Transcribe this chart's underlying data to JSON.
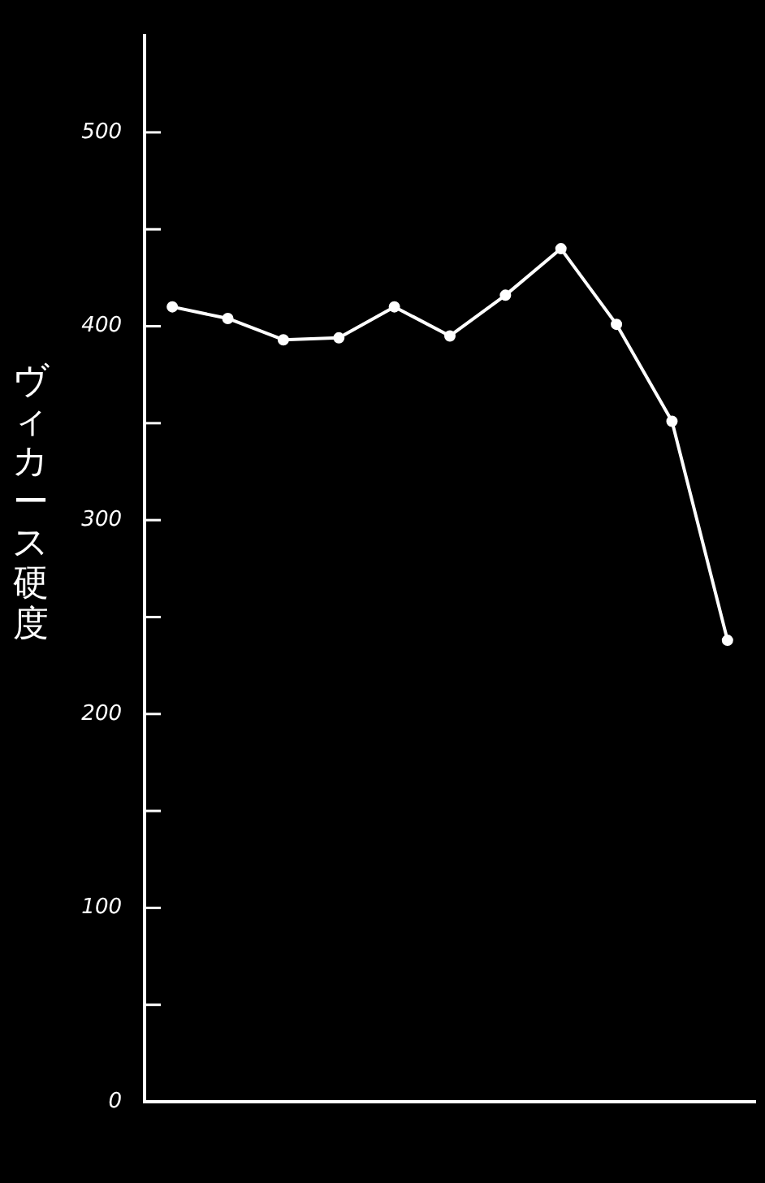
{
  "chart_data": {
    "type": "line",
    "ylabel": "ヴィカース硬度",
    "categories": [
      null,
      null,
      null,
      null,
      null,
      null,
      null,
      null,
      null,
      null,
      null
    ],
    "series": [
      {
        "color": "#ffffff",
        "values": [
          410,
          404,
          393,
          394,
          410,
          395,
          416,
          440,
          401,
          351,
          238
        ]
      }
    ],
    "ylim": [
      0,
      550
    ],
    "yticks": [
      0,
      {
        "value": 50,
        "label": null
      },
      100,
      {
        "value": 150,
        "label": null
      },
      200,
      {
        "value": 250,
        "label": null
      },
      300,
      {
        "value": 350,
        "label": null
      },
      400,
      {
        "value": 450,
        "label": null
      },
      500
    ],
    "grid": false,
    "legend": false,
    "marker": "circle",
    "line_style": "solid"
  }
}
